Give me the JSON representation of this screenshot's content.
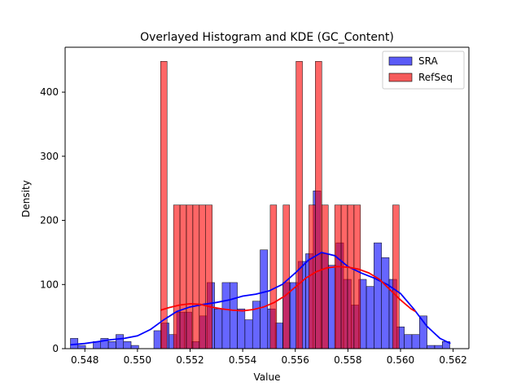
{
  "chart_data": {
    "type": "histogram",
    "title": "Overlayed Histogram and KDE (GC_Content)",
    "xlabel": "Value",
    "ylabel": "Density",
    "xlim": [
      0.54725,
      0.5626
    ],
    "ylim": [
      0,
      470
    ],
    "xticks": [
      0.548,
      0.55,
      0.552,
      0.554,
      0.556,
      0.558,
      0.56,
      0.562
    ],
    "xtick_labels": [
      "0.548",
      "0.550",
      "0.552",
      "0.554",
      "0.556",
      "0.558",
      "0.560",
      "0.562"
    ],
    "yticks": [
      0,
      100,
      200,
      300,
      400
    ],
    "ytick_labels": [
      "0",
      "100",
      "200",
      "300",
      "400"
    ],
    "grid": false,
    "legend_position": "top-right",
    "series": [
      {
        "name": "SRA",
        "color": "#0000ff",
        "kind": "histogram",
        "bin_start": 0.54745,
        "bin_width": 0.0002885,
        "densities": [
          16,
          5,
          0,
          11,
          16,
          11,
          22,
          11,
          5,
          0,
          0,
          28,
          40,
          22,
          57,
          57,
          11,
          51,
          103,
          62,
          103,
          103,
          62,
          45,
          74,
          154,
          62,
          40,
          103,
          103,
          136,
          148,
          246,
          148,
          130,
          165,
          108,
          68,
          108,
          97,
          165,
          142,
          108,
          34,
          22,
          22,
          51,
          5,
          5,
          11
        ]
      },
      {
        "name": "RefSeq",
        "color": "#ff0000",
        "kind": "histogram",
        "bin_start": 0.55088,
        "bin_width": 0.0002451,
        "densities": [
          448,
          0,
          224,
          224,
          224,
          224,
          224,
          224,
          0,
          0,
          0,
          0,
          0,
          0,
          0,
          0,
          0,
          224,
          0,
          224,
          0,
          448,
          0,
          224,
          448,
          224,
          0,
          224,
          224,
          224,
          224,
          0,
          0,
          0,
          0,
          0,
          224
        ]
      },
      {
        "name": "SRA KDE",
        "color": "#0000ff",
        "kind": "line",
        "x": [
          0.54745,
          0.548,
          0.5485,
          0.549,
          0.5495,
          0.55,
          0.5505,
          0.551,
          0.5515,
          0.552,
          0.5525,
          0.553,
          0.5535,
          0.554,
          0.5545,
          0.555,
          0.5555,
          0.556,
          0.5565,
          0.557,
          0.5575,
          0.558,
          0.5585,
          0.559,
          0.5595,
          0.56,
          0.5605,
          0.561,
          0.5615,
          0.5619
        ],
        "y": [
          6,
          8,
          11,
          14,
          16,
          20,
          30,
          45,
          58,
          65,
          69,
          72,
          76,
          82,
          85,
          90,
          100,
          118,
          138,
          150,
          145,
          128,
          118,
          110,
          100,
          86,
          62,
          35,
          16,
          8
        ]
      },
      {
        "name": "RefSeq KDE",
        "color": "#ff0000",
        "kind": "line",
        "x": [
          0.55088,
          0.5512,
          0.5516,
          0.552,
          0.5524,
          0.5528,
          0.5532,
          0.5536,
          0.554,
          0.5544,
          0.5548,
          0.5552,
          0.5556,
          0.556,
          0.5564,
          0.5568,
          0.5572,
          0.5576,
          0.558,
          0.5584,
          0.5588,
          0.5592,
          0.5596,
          0.56,
          0.5604,
          0.56057
        ],
        "y": [
          60,
          64,
          68,
          70,
          69,
          65,
          62,
          60,
          59,
          61,
          65,
          72,
          82,
          96,
          110,
          120,
          126,
          128,
          127,
          124,
          118,
          108,
          92,
          76,
          62,
          58
        ]
      }
    ]
  }
}
